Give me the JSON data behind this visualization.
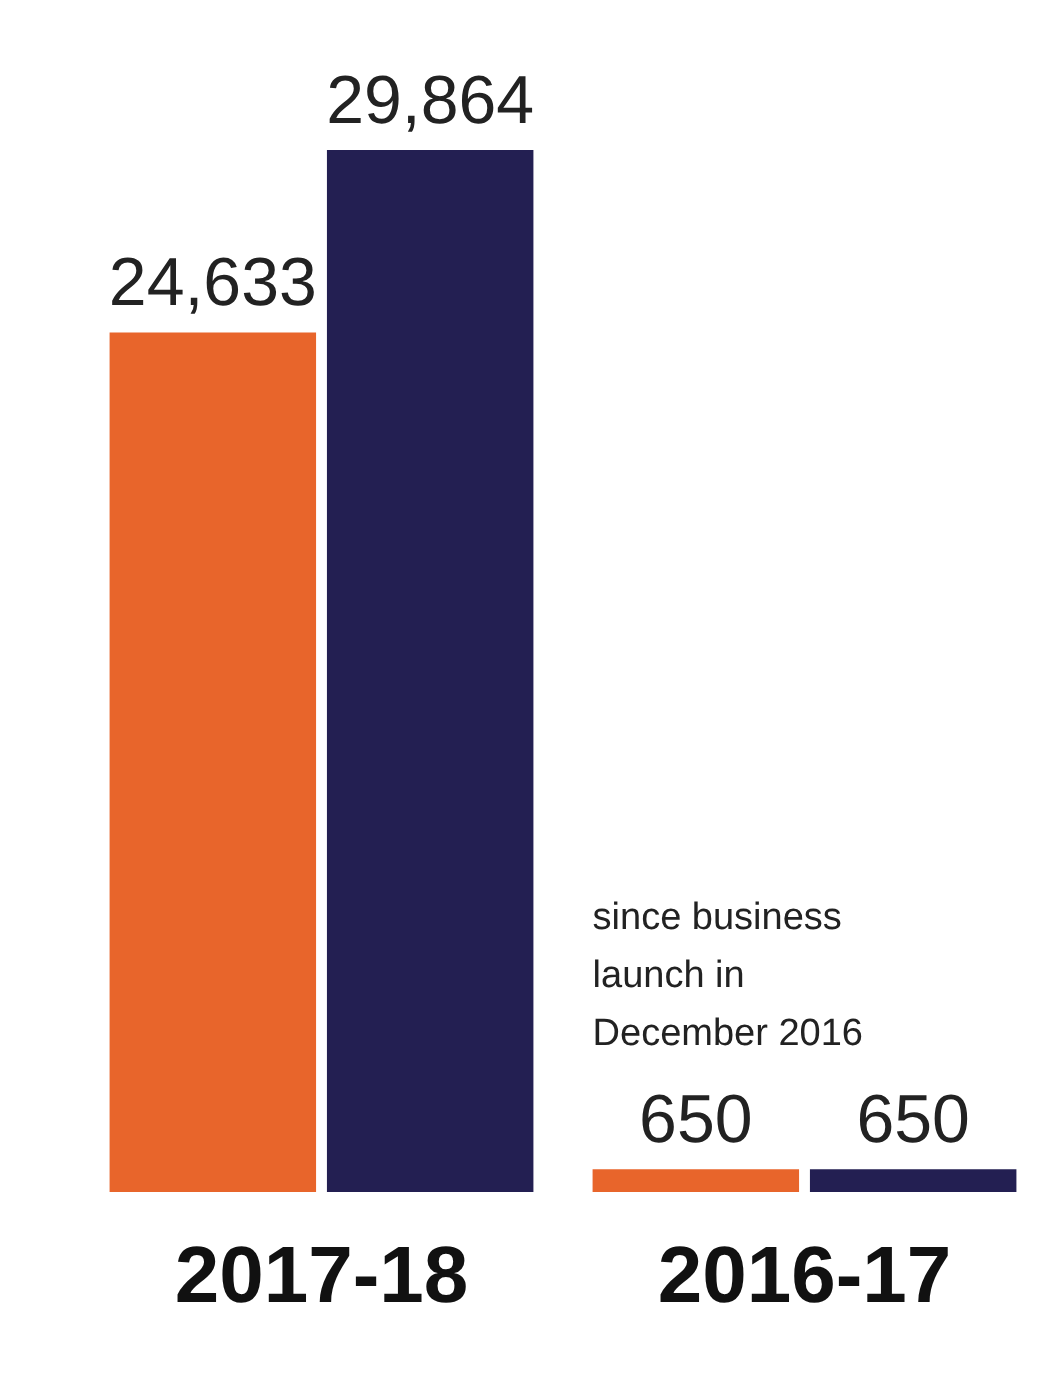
{
  "chart_data": {
    "type": "bar",
    "categories": [
      "2017-18",
      "2016-17"
    ],
    "series": [
      {
        "color": "#e8652b",
        "values": [
          24633,
          650
        ],
        "value_labels": [
          "24,633",
          "650"
        ]
      },
      {
        "color": "#231f52",
        "values": [
          29864,
          650
        ],
        "value_labels": [
          "29,864",
          "650"
        ]
      }
    ],
    "grid": false,
    "legend": false,
    "annotations": [
      "since business launch in December 2016"
    ]
  }
}
